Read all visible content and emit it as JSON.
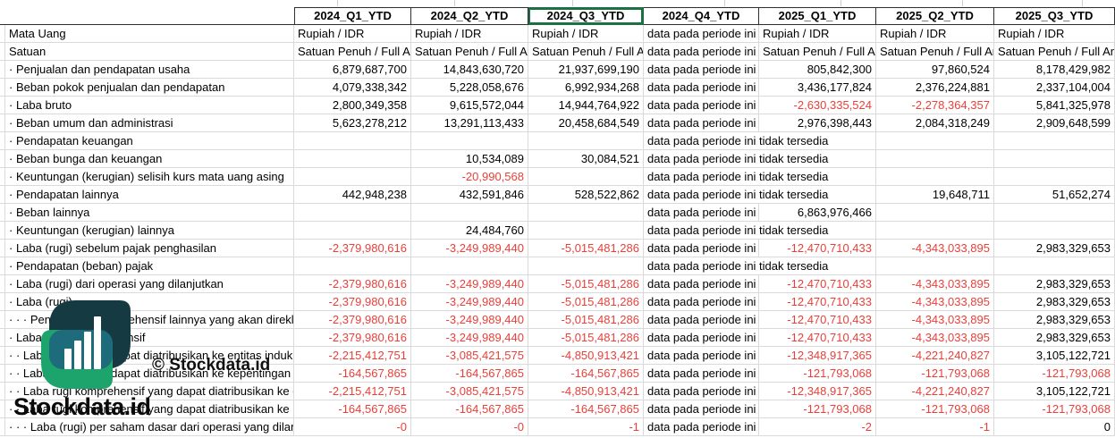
{
  "table": {
    "columns": [
      "2024_Q1_YTD",
      "2024_Q2_YTD",
      "2024_Q3_YTD",
      "2024_Q4_YTD",
      "2025_Q1_YTD",
      "2025_Q2_YTD",
      "2025_Q3_YTD"
    ],
    "selected_column": "2024_Q3_YTD",
    "unavailable_text": "data pada periode ini tidak tersedia",
    "rows": [
      {
        "label": "Mata Uang",
        "values": [
          "Rupiah / IDR",
          "Rupiah / IDR",
          "Rupiah / IDR",
          "data pada periode ini tidak tersedia",
          "Rupiah / IDR",
          "Rupiah / IDR",
          "Rupiah / IDR"
        ]
      },
      {
        "label": "Satuan",
        "values": [
          "Satuan Penuh / Full Amount",
          "Satuan Penuh / Full Amount",
          "Satuan Penuh / Full Amount",
          "data pada periode ini tidak tersedia",
          "Satuan Penuh / Full Amount",
          "Satuan Penuh / Full Amount",
          "Satuan Penuh / Full Amount"
        ]
      },
      {
        "label": "· Penjualan dan pendapatan usaha",
        "values": [
          "6,879,687,700",
          "14,843,630,720",
          "21,937,699,190",
          "data pada periode ini tidak tersedia",
          "805,842,300",
          "97,860,524",
          "8,178,429,982"
        ]
      },
      {
        "label": "· Beban pokok penjualan dan pendapatan",
        "values": [
          "4,079,338,342",
          "5,228,058,676",
          "6,992,934,268",
          "data pada periode ini tidak tersedia",
          "3,436,177,824",
          "2,376,224,881",
          "2,337,104,004"
        ]
      },
      {
        "label": "· Laba bruto",
        "values": [
          "2,800,349,358",
          "9,615,572,044",
          "14,944,764,922",
          "data pada periode ini tidak tersedia",
          "-2,630,335,524",
          "-2,278,364,357",
          "5,841,325,978"
        ]
      },
      {
        "label": "· Beban umum dan administrasi",
        "values": [
          "5,623,278,212",
          "13,291,113,433",
          "20,458,684,549",
          "data pada periode ini tidak tersedia",
          "2,976,398,443",
          "2,084,318,249",
          "2,909,648,599"
        ]
      },
      {
        "label": "· Pendapatan keuangan",
        "values": [
          "",
          "",
          "",
          "data pada periode ini tidak tersedia",
          "",
          "",
          ""
        ]
      },
      {
        "label": "· Beban bunga dan keuangan",
        "values": [
          "",
          "10,534,089",
          "30,084,521",
          "data pada periode ini tidak tersedia",
          "",
          "",
          ""
        ]
      },
      {
        "label": "· Keuntungan (kerugian) selisih kurs mata uang asing",
        "values": [
          "",
          "-20,990,568",
          "",
          "data pada periode ini tidak tersedia",
          "",
          "",
          ""
        ]
      },
      {
        "label": "· Pendapatan lainnya",
        "values": [
          "442,948,238",
          "432,591,846",
          "528,522,862",
          "data pada periode ini tidak tersedia",
          "",
          "19,648,711",
          "51,652,274"
        ]
      },
      {
        "label": "· Beban lainnya",
        "values": [
          "",
          "",
          "",
          "data pada periode ini tidak tersedia",
          "6,863,976,466",
          "",
          ""
        ]
      },
      {
        "label": "· Keuntungan (kerugian) lainnya",
        "values": [
          "",
          "24,484,760",
          "",
          "data pada periode ini tidak tersedia",
          "",
          "",
          ""
        ]
      },
      {
        "label": "· Laba (rugi) sebelum pajak penghasilan",
        "values": [
          "-2,379,980,616",
          "-3,249,989,440",
          "-5,015,481,286",
          "data pada periode ini tidak tersedia",
          "-12,470,710,433",
          "-4,343,033,895",
          "2,983,329,653"
        ]
      },
      {
        "label": "· Pendapatan (beban) pajak",
        "values": [
          "",
          "",
          "",
          "data pada periode ini tidak tersedia",
          "",
          "",
          ""
        ]
      },
      {
        "label": "· Laba (rugi) dari operasi yang dilanjutkan",
        "values": [
          "-2,379,980,616",
          "-3,249,989,440",
          "-5,015,481,286",
          "data pada periode ini tidak tersedia",
          "-12,470,710,433",
          "-4,343,033,895",
          "2,983,329,653"
        ]
      },
      {
        "label": "· Laba (rugi)",
        "values": [
          "-2,379,980,616",
          "-3,249,989,440",
          "-5,015,481,286",
          "data pada periode ini tidak tersedia",
          "-12,470,710,433",
          "-4,343,033,895",
          "2,983,329,653"
        ]
      },
      {
        "label": "· · · Pendapatan komprehensif lainnya yang akan direklasifikasi ke laba rugi",
        "values": [
          "-2,379,980,616",
          "-3,249,989,440",
          "-5,015,481,286",
          "data pada periode ini tidak tersedia",
          "-12,470,710,433",
          "-4,343,033,895",
          "2,983,329,653"
        ]
      },
      {
        "label": "· Laba (rugi) komprehensif",
        "values": [
          "-2,379,980,616",
          "-3,249,989,440",
          "-5,015,481,286",
          "data pada periode ini tidak tersedia",
          "-12,470,710,433",
          "-4,343,033,895",
          "2,983,329,653"
        ]
      },
      {
        "label": "· · Laba (rugi) yang dapat diatribusikan ke entitas induk",
        "values": [
          "-2,215,412,751",
          "-3,085,421,575",
          "-4,850,913,421",
          "data pada periode ini tidak tersedia",
          "-12,348,917,365",
          "-4,221,240,827",
          "3,105,122,721"
        ]
      },
      {
        "label": "· · Laba (rugi) yang dapat diatribusikan ke kepentingan non-pengendali",
        "values": [
          "-164,567,865",
          "-164,567,865",
          "-164,567,865",
          "data pada periode ini tidak tersedia",
          "-121,793,068",
          "-121,793,068",
          "-121,793,068"
        ]
      },
      {
        "label": "· · Laba rugi komprehensif yang dapat diatribusikan ke entitas induk",
        "values": [
          "-2,215,412,751",
          "-3,085,421,575",
          "-4,850,913,421",
          "data pada periode ini tidak tersedia",
          "-12,348,917,365",
          "-4,221,240,827",
          "3,105,122,721"
        ]
      },
      {
        "label": "· · Laba rugi komprehensif yang dapat diatribusikan ke kepentingan non-pengendali",
        "values": [
          "-164,567,865",
          "-164,567,865",
          "-164,567,865",
          "data pada periode ini tidak tersedia",
          "-121,793,068",
          "-121,793,068",
          "-121,793,068"
        ]
      },
      {
        "label": "· · · Laba (rugi) per saham dasar dari operasi yang dilanjutkan",
        "values": [
          "-0",
          "-0",
          "-1",
          "data pada periode ini tidak tersedia",
          "-2",
          "-1",
          "0"
        ]
      }
    ]
  },
  "watermark": {
    "copyright": "© Stockdata.id",
    "brand": "Stockdata.id"
  },
  "colors": {
    "negative_value": "#e8413a",
    "gridline": "#dadada",
    "header_border": "#2f2f2f",
    "selection_green": "#1d7044",
    "logo_dark_teal": "#163a42",
    "logo_mid_teal": "#1e6b7b",
    "logo_green": "#1da46c"
  }
}
